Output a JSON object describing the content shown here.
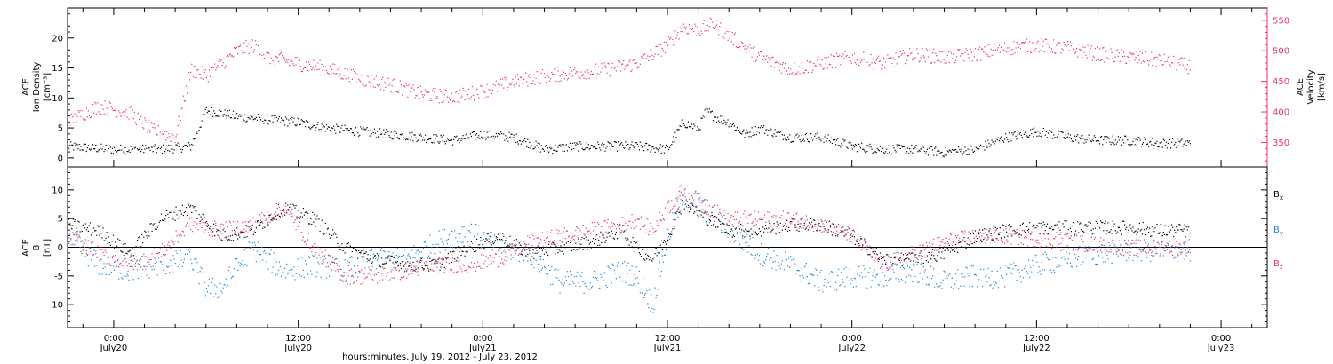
{
  "chart_data": [
    {
      "type": "scatter",
      "panel": "top",
      "ylabel_left": [
        "ACE",
        "Ion Density",
        "[cm⁻³]"
      ],
      "ylabel_right": [
        "ACE",
        "Velocity",
        "[km/s]"
      ],
      "ylim_left": [
        -1.5,
        25
      ],
      "ylim_right": [
        310,
        570
      ],
      "yticks_left": [
        "0",
        "5",
        "10",
        "15",
        "20"
      ],
      "yticks_right": [
        "350",
        "400",
        "450",
        "500",
        "550"
      ],
      "series": [
        {
          "color": "#000000",
          "axis": "left",
          "x": [
            -3,
            0,
            3,
            5,
            6,
            8,
            10,
            12,
            14,
            16,
            18,
            20,
            22,
            24,
            26,
            28,
            30,
            32,
            34,
            36,
            37,
            38,
            38.5,
            39,
            40,
            41,
            42,
            44,
            46,
            48,
            50,
            52,
            54,
            56,
            58,
            60,
            62,
            64,
            66,
            68,
            70
          ],
          "y": [
            2,
            1.5,
            1.5,
            2,
            8,
            7,
            6.5,
            6,
            5,
            4.5,
            4,
            3.5,
            3,
            4,
            3.5,
            1.5,
            2,
            2,
            2,
            1.5,
            6,
            5,
            8,
            7,
            6,
            4,
            5,
            3.5,
            3.5,
            2,
            1.5,
            1.5,
            1,
            1.5,
            3.5,
            4.5,
            3.5,
            3,
            3,
            2.5,
            2.5
          ]
        },
        {
          "color": "#e8336b",
          "axis": "right",
          "x": [
            -3,
            -1,
            1,
            2.5,
            4,
            5,
            6,
            8,
            9,
            10,
            12,
            14,
            16,
            18,
            20,
            22,
            24,
            26,
            28,
            30,
            32,
            34,
            36,
            37,
            38,
            39,
            40,
            42,
            44,
            46,
            48,
            50,
            52,
            54,
            56,
            58,
            60,
            62,
            64,
            66,
            68,
            70
          ],
          "y": [
            385,
            410,
            400,
            370,
            360,
            470,
            460,
            500,
            510,
            490,
            480,
            470,
            455,
            445,
            430,
            425,
            435,
            450,
            460,
            465,
            470,
            480,
            510,
            540,
            535,
            545,
            525,
            490,
            470,
            480,
            490,
            480,
            495,
            490,
            495,
            505,
            510,
            505,
            495,
            490,
            485,
            475
          ]
        }
      ]
    },
    {
      "type": "scatter",
      "panel": "bottom",
      "ylabel": [
        "ACE",
        "B",
        "[nT]"
      ],
      "ylim": [
        -14,
        14
      ],
      "yticks": [
        "-10",
        "-5",
        "0",
        "5",
        "10"
      ],
      "legend": [
        "Bx",
        "By",
        "Bz"
      ],
      "legend_position": "right",
      "series": [
        {
          "name": "Bx",
          "color": "#000000",
          "x": [
            -3,
            -1,
            1,
            3,
            5,
            7,
            9,
            11,
            13,
            15,
            17,
            19,
            21,
            23,
            25,
            27,
            29,
            31,
            33,
            34,
            35,
            36,
            37,
            38,
            40,
            42,
            44,
            46,
            48,
            50,
            52,
            54,
            56,
            58,
            60,
            62,
            64,
            66,
            68,
            70
          ],
          "y": [
            4,
            3,
            -1,
            5,
            7,
            2,
            3,
            7,
            5,
            0,
            -2,
            -3,
            -3,
            0,
            2,
            -1,
            0,
            1,
            3,
            0,
            -2,
            2,
            8,
            6,
            3,
            3,
            4,
            4,
            2,
            -2,
            -2,
            -1,
            2,
            3,
            3.5,
            3.5,
            3.5,
            3.5,
            3,
            3
          ]
        },
        {
          "name": "By",
          "color": "#1f86d6",
          "x": [
            -3,
            -1,
            1,
            3,
            5,
            6,
            7,
            9,
            11,
            13,
            15,
            17,
            19,
            21,
            23,
            25,
            27,
            29,
            31,
            33,
            34,
            35,
            36,
            37,
            38,
            40,
            42,
            44,
            46,
            48,
            50,
            52,
            54,
            56,
            58,
            60,
            62,
            64,
            66,
            68,
            70
          ],
          "y": [
            2,
            -3,
            -4,
            -3,
            -2,
            -7,
            -7,
            0,
            -4,
            -3,
            -4,
            -2,
            -2,
            1,
            3,
            0,
            -1,
            -6,
            -6,
            -4,
            -5,
            -10,
            2,
            9,
            8,
            3,
            -1,
            -3,
            -6,
            -5,
            -5,
            -4,
            -6,
            -5,
            -5,
            -3,
            -2,
            -1,
            -0.5,
            -0.5,
            -0.5
          ]
        },
        {
          "name": "Bz",
          "color": "#e8336b",
          "x": [
            -3,
            -1,
            1,
            3,
            5,
            7,
            9,
            11,
            13,
            15,
            17,
            19,
            21,
            23,
            25,
            27,
            29,
            31,
            33,
            34,
            35,
            36,
            37,
            38,
            40,
            42,
            44,
            46,
            48,
            50,
            52,
            54,
            56,
            58,
            60,
            62,
            64,
            66,
            68,
            70
          ],
          "y": [
            2,
            -1,
            -3,
            -1,
            4,
            3,
            4,
            7,
            0,
            -5,
            -5,
            -4,
            -3,
            -3,
            -2,
            1,
            2,
            3,
            4,
            5,
            3,
            7,
            10,
            8,
            5,
            5,
            5,
            4,
            2,
            -3,
            -1,
            1,
            2,
            2,
            1.5,
            1,
            0.5,
            0,
            0,
            0
          ]
        }
      ]
    }
  ],
  "x_axis": {
    "range_hours": [
      -3,
      75
    ],
    "ticks": [
      {
        "t": 0,
        "time": "0:00",
        "date": "July20"
      },
      {
        "t": 12,
        "time": "12:00",
        "date": "July20"
      },
      {
        "t": 24,
        "time": "0:00",
        "date": "July21"
      },
      {
        "t": 36,
        "time": "12:00",
        "date": "July21"
      },
      {
        "t": 48,
        "time": "0:00",
        "date": "July22"
      },
      {
        "t": 60,
        "time": "12:00",
        "date": "July22"
      },
      {
        "t": 72,
        "time": "0:00",
        "date": "July23"
      }
    ],
    "xlabel": "hours:minutes, July 19, 2012 - July 23, 2012"
  },
  "legend_labels": [
    {
      "main": "B",
      "sub": "x",
      "color": "#000000"
    },
    {
      "main": "B",
      "sub": "y",
      "color": "#1f86d6"
    },
    {
      "main": "B",
      "sub": "z",
      "color": "#e8336b"
    }
  ]
}
